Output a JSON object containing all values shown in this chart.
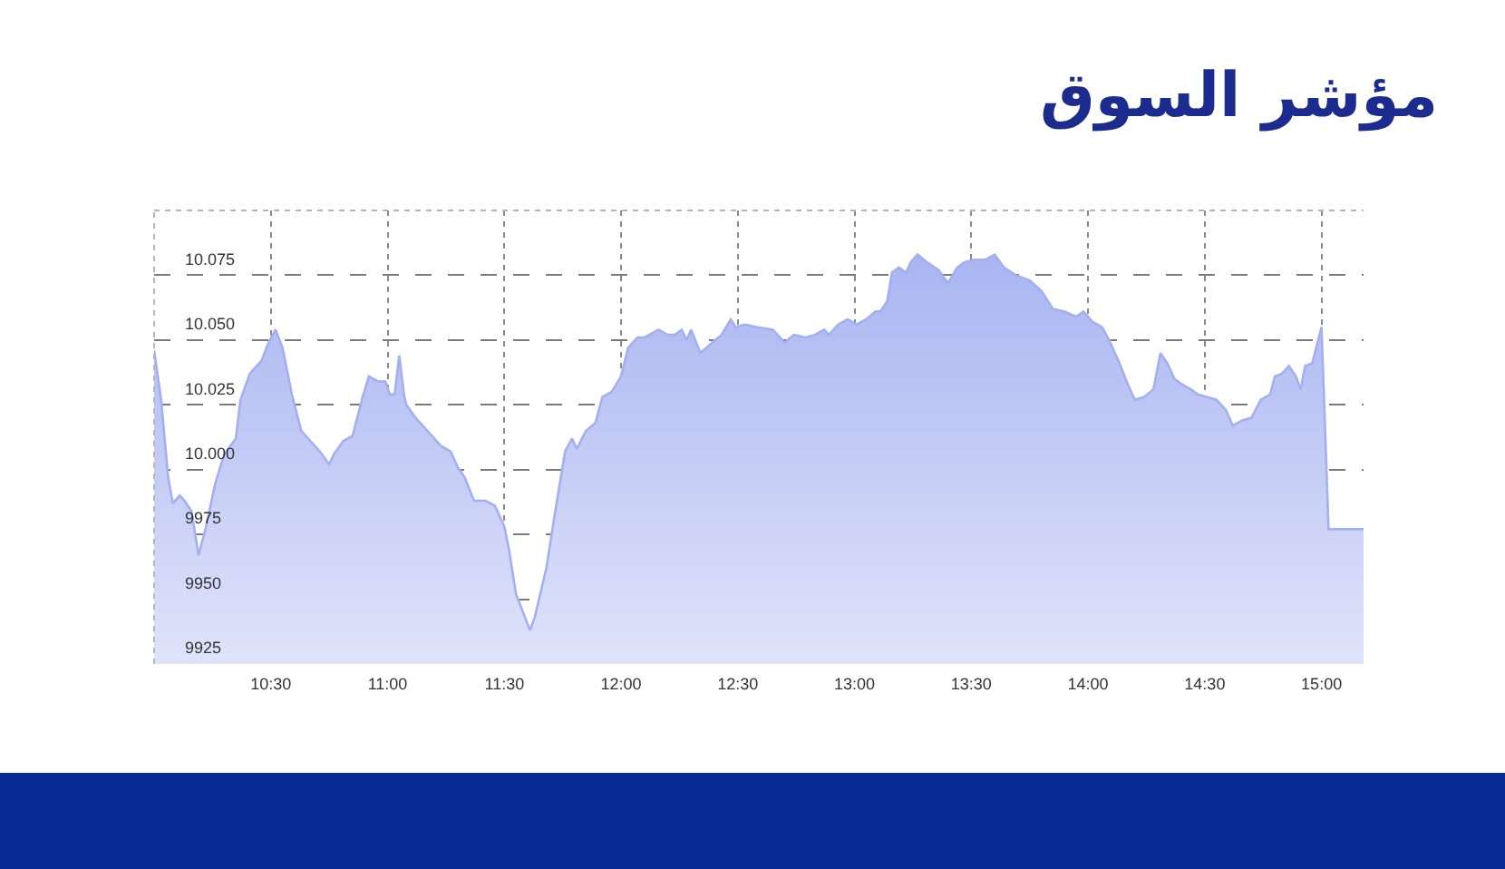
{
  "chart_data": {
    "type": "area",
    "title": "مؤشر السوق",
    "x": [
      10.0,
      10.03,
      10.06,
      10.08,
      10.11,
      10.13,
      10.16,
      10.19,
      10.22,
      10.26,
      10.3,
      10.35,
      10.37,
      10.41,
      10.46,
      10.49,
      10.52,
      10.55,
      10.59,
      10.63,
      10.67,
      10.71,
      10.75,
      10.77,
      10.81,
      10.85,
      10.89,
      10.92,
      10.96,
      10.99,
      11.01,
      11.03,
      11.05,
      11.07,
      11.08,
      11.12,
      11.17,
      11.23,
      11.27,
      11.3,
      11.33,
      11.37,
      11.42,
      11.46,
      11.5,
      11.52,
      11.55,
      11.58,
      11.61,
      11.63,
      11.68,
      11.72,
      11.76,
      11.79,
      11.81,
      11.85,
      11.89,
      11.92,
      11.96,
      12.0,
      12.03,
      12.07,
      12.1,
      12.16,
      12.2,
      12.23,
      12.26,
      12.28,
      12.3,
      12.34,
      12.39,
      12.43,
      12.47,
      12.49,
      12.53,
      12.58,
      12.65,
      12.7,
      12.74,
      12.79,
      12.83,
      12.87,
      12.89,
      12.93,
      12.97,
      13.01,
      13.05,
      13.09,
      13.11,
      13.14,
      13.16,
      13.19,
      13.22,
      13.24,
      13.27,
      13.31,
      13.36,
      13.4,
      13.44,
      13.47,
      13.51,
      13.56,
      13.6,
      13.64,
      13.69,
      13.75,
      13.8,
      13.85,
      13.9,
      13.95,
      13.98,
      14.02,
      14.06,
      14.09,
      14.13,
      14.17,
      14.2,
      14.24,
      14.28,
      14.31,
      14.34,
      14.37,
      14.4,
      14.44,
      14.47,
      14.51,
      14.55,
      14.59,
      14.62,
      14.66,
      14.7,
      14.74,
      14.78,
      14.8,
      14.83,
      14.86,
      14.89,
      14.91,
      14.93,
      14.96,
      14.98,
      15.0,
      15.01,
      15.03,
      15.18
    ],
    "values": [
      10046,
      10027,
      9997,
      9987,
      9990,
      9988,
      9984,
      9967,
      9977,
      9994,
      10006,
      10012,
      10027,
      10037,
      10042,
      10049,
      10054,
      10047,
      10029,
      10015,
      10011,
      10007,
      10002,
      10006,
      10011,
      10013,
      10027,
      10036,
      10034,
      10034,
      10029,
      10029,
      10044,
      10029,
      10025,
      10020,
      10015,
      10009,
      10007,
      10001,
      9997,
      9988,
      9988,
      9986,
      9978,
      9969,
      9952,
      9945,
      9938,
      9943,
      9962,
      9985,
      10007,
      10012,
      10008,
      10015,
      10018,
      10028,
      10030,
      10036,
      10047,
      10051,
      10051,
      10054,
      10052,
      10052,
      10054,
      10050,
      10054,
      10045,
      10049,
      10052,
      10058,
      10055,
      10056,
      10055,
      10054,
      10049,
      10052,
      10051,
      10052,
      10054,
      10052,
      10056,
      10058,
      10056,
      10058,
      10061,
      10061,
      10065,
      10076,
      10078,
      10076,
      10080,
      10083,
      10080,
      10077,
      10072,
      10078,
      10080,
      10081,
      10081,
      10083,
      10078,
      10075,
      10073,
      10069,
      10062,
      10061,
      10059,
      10061,
      10057,
      10055,
      10050,
      10042,
      10033,
      10027,
      10028,
      10031,
      10045,
      10041,
      10035,
      10033,
      10031,
      10029,
      10028,
      10027,
      10023,
      10017,
      10019,
      10020,
      10027,
      10029,
      10036,
      10037,
      10040,
      10036,
      10031,
      10040,
      10041,
      10048,
      10055,
      10029,
      9977,
      9977
    ],
    "color": "#a3b0f0",
    "xlim": [
      10,
      15.18
    ],
    "xticks": [
      {
        "value": 10.5,
        "label": "10:30"
      },
      {
        "value": 11,
        "label": "11:00"
      },
      {
        "value": 11.5,
        "label": "11:30"
      },
      {
        "value": 12,
        "label": "12:00"
      },
      {
        "value": 12.5,
        "label": "12:30"
      },
      {
        "value": 13,
        "label": "13:00"
      },
      {
        "value": 13.5,
        "label": "13:30"
      },
      {
        "value": 14,
        "label": "14:00"
      },
      {
        "value": 14.5,
        "label": "14:30"
      },
      {
        "value": 15,
        "label": "15:00"
      }
    ],
    "ylim": [
      9925,
      10100
    ],
    "yticks": [
      9925,
      9950,
      9975,
      {
        "value": 10000,
        "label": "10.000"
      },
      {
        "value": 10025,
        "label": "10.025"
      },
      {
        "value": 10050,
        "label": "10.050"
      },
      {
        "value": 10075,
        "label": "10.075"
      }
    ],
    "grid": true
  }
}
